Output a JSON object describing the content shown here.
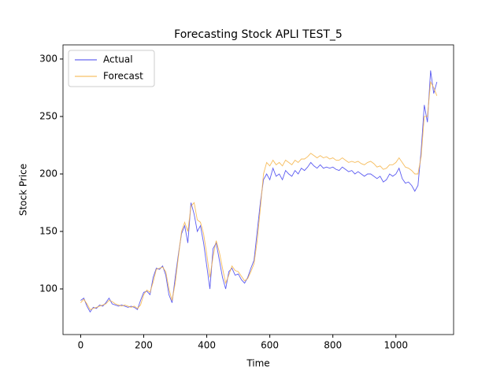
{
  "chart_data": {
    "type": "line",
    "title": "Forecasting Stock APLI TEST_5",
    "x_label": "Time",
    "y_label": "Stock Price",
    "x": [
      0,
      10,
      20,
      30,
      40,
      50,
      60,
      70,
      80,
      90,
      100,
      110,
      120,
      130,
      140,
      150,
      160,
      170,
      180,
      190,
      200,
      210,
      220,
      230,
      240,
      250,
      260,
      270,
      280,
      290,
      300,
      310,
      320,
      330,
      340,
      350,
      360,
      370,
      380,
      390,
      400,
      410,
      420,
      430,
      440,
      450,
      460,
      470,
      480,
      490,
      500,
      510,
      520,
      530,
      540,
      550,
      560,
      570,
      580,
      590,
      600,
      610,
      620,
      630,
      640,
      650,
      660,
      670,
      680,
      690,
      700,
      710,
      720,
      730,
      740,
      750,
      760,
      770,
      780,
      790,
      800,
      810,
      820,
      830,
      840,
      850,
      860,
      870,
      880,
      890,
      900,
      910,
      920,
      930,
      940,
      950,
      960,
      970,
      980,
      990,
      1000,
      1010,
      1020,
      1030,
      1040,
      1050,
      1060,
      1070,
      1080,
      1090,
      1100,
      1110,
      1120,
      1130
    ],
    "series": [
      {
        "name": "Actual",
        "color": "#4040ee",
        "values": [
          90,
          92,
          85,
          80,
          84,
          83,
          86,
          85,
          88,
          92,
          87,
          86,
          85,
          86,
          85,
          84,
          85,
          84,
          82,
          90,
          97,
          98,
          95,
          110,
          118,
          117,
          120,
          112,
          95,
          88,
          110,
          130,
          148,
          155,
          140,
          175,
          165,
          150,
          155,
          140,
          120,
          100,
          135,
          140,
          125,
          110,
          100,
          115,
          118,
          112,
          113,
          108,
          105,
          110,
          118,
          125,
          150,
          175,
          195,
          200,
          195,
          205,
          198,
          200,
          195,
          203,
          200,
          198,
          203,
          200,
          205,
          203,
          206,
          210,
          207,
          205,
          208,
          205,
          206,
          205,
          206,
          204,
          203,
          206,
          204,
          202,
          203,
          200,
          202,
          200,
          198,
          200,
          200,
          198,
          196,
          198,
          193,
          195,
          200,
          198,
          200,
          205,
          196,
          192,
          193,
          190,
          185,
          190,
          220,
          260,
          245,
          290,
          270,
          280
        ]
      },
      {
        "name": "Forecast",
        "color": "#f5b040",
        "values": [
          88,
          91,
          87,
          82,
          83,
          84,
          85,
          86,
          87,
          90,
          89,
          87,
          86,
          85,
          86,
          85,
          84,
          85,
          83,
          86,
          95,
          99,
          97,
          106,
          117,
          118,
          119,
          115,
          100,
          90,
          105,
          128,
          150,
          158,
          150,
          172,
          175,
          160,
          158,
          148,
          130,
          110,
          128,
          142,
          132,
          118,
          105,
          112,
          120,
          116,
          115,
          111,
          107,
          109,
          115,
          122,
          142,
          170,
          200,
          210,
          207,
          212,
          208,
          210,
          207,
          212,
          210,
          208,
          212,
          210,
          213,
          213,
          215,
          218,
          216,
          214,
          216,
          214,
          215,
          213,
          214,
          212,
          212,
          214,
          212,
          210,
          211,
          210,
          211,
          209,
          208,
          210,
          211,
          209,
          206,
          207,
          204,
          205,
          208,
          208,
          210,
          214,
          210,
          206,
          205,
          203,
          200,
          200,
          215,
          250,
          250,
          280,
          275,
          268
        ]
      }
    ],
    "xlim": [
      -56,
      1183
    ],
    "ylim": [
      60.3,
      312.3
    ],
    "xticks": [
      0,
      200,
      400,
      600,
      800,
      1000
    ],
    "yticks": [
      100,
      150,
      200,
      250,
      300
    ],
    "legend": "upper left"
  }
}
